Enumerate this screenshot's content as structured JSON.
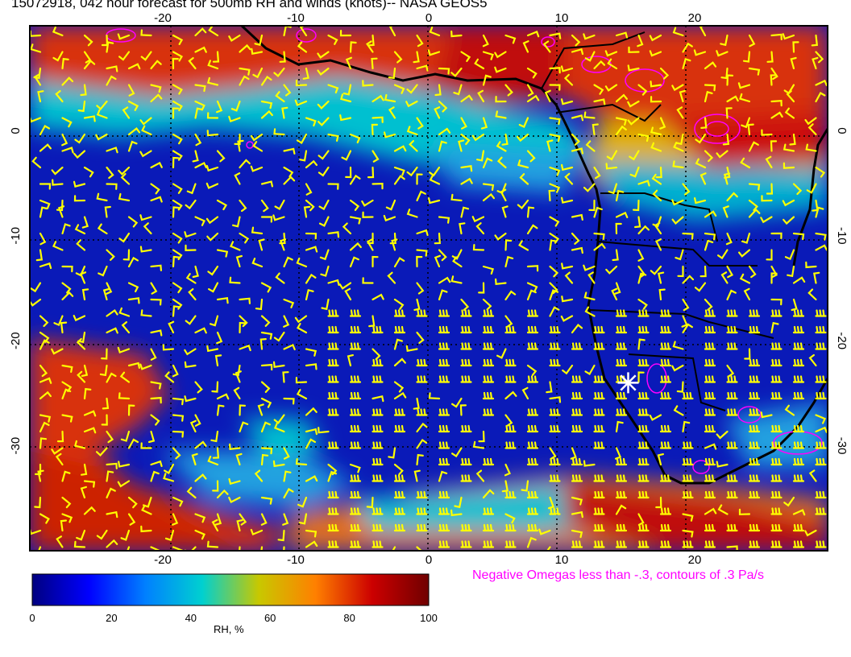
{
  "title": "15072918, 042 hour forecast for 500mb RH and winds (knots)-- NASA GEOS5",
  "map": {
    "lon_range": [
      -30,
      30
    ],
    "lat_range": [
      -40,
      10
    ],
    "lon_ticks": [
      "-20",
      "-10",
      "0",
      "10",
      "20"
    ],
    "lat_ticks": [
      "0",
      "-10",
      "-20",
      "-30"
    ],
    "marker": {
      "type": "star",
      "lon": 15,
      "lat": -24,
      "color": "#ffffff"
    },
    "wind_barb_color": "#ffff00",
    "coastline_color": "#000000",
    "omega_contour_color": "#ff00ff"
  },
  "colorbar": {
    "label": "RH, %",
    "ticks": [
      "0",
      "20",
      "40",
      "60",
      "80",
      "100"
    ],
    "colors": [
      "#000080",
      "#0000ff",
      "#0080ff",
      "#00d0d0",
      "#c8c800",
      "#ff8000",
      "#cc0000",
      "#700000"
    ]
  },
  "note": "Negative Omegas less than -.3, contours of .3 Pa/s"
}
